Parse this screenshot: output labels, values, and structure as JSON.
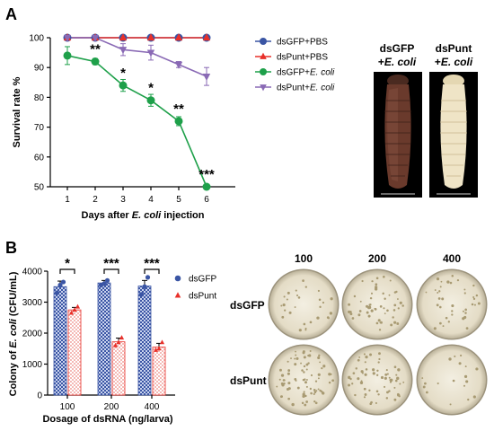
{
  "panels": {
    "a": "A",
    "b": "B"
  },
  "chart_data": [
    {
      "type": "line",
      "x": [
        1,
        2,
        3,
        4,
        5,
        6
      ],
      "xlabel_prefix": "Days after ",
      "xlabel_italic": "E. coli",
      "xlabel_suffix": " injection",
      "ylabel": "Survival rate %",
      "ylim": [
        50,
        100
      ],
      "yticks": [
        50,
        60,
        70,
        80,
        90,
        100
      ],
      "series": [
        {
          "name": "dsGFP+PBS",
          "color": "#3a55a4",
          "marker": "circle",
          "values": [
            100,
            100,
            100,
            100,
            100,
            100
          ],
          "errors": [
            0,
            0,
            0,
            0,
            0,
            0
          ]
        },
        {
          "name": "dsPunt+PBS",
          "color": "#e8302a",
          "marker": "triangle-up",
          "values": [
            100,
            100,
            100,
            100,
            100,
            100
          ],
          "errors": [
            0,
            0,
            0,
            0,
            0,
            0
          ]
        },
        {
          "name": "dsGFP+E. coli",
          "color": "#1ea04a",
          "marker": "circle",
          "values": [
            94,
            92,
            84,
            79,
            72,
            50
          ],
          "errors": [
            3,
            1,
            2,
            2,
            1.5,
            0
          ]
        },
        {
          "name": "dsPunt+E. coli",
          "color": "#8a6ab5",
          "marker": "triangle-down",
          "values": [
            100,
            100,
            96,
            95,
            91,
            87
          ],
          "errors": [
            0,
            0,
            2,
            2.5,
            1,
            3
          ]
        }
      ],
      "significance": [
        {
          "x": 2,
          "label": "**"
        },
        {
          "x": 3,
          "label": "*"
        },
        {
          "x": 4,
          "label": "*"
        },
        {
          "x": 5,
          "label": "**"
        },
        {
          "x": 6,
          "label": "***"
        }
      ]
    },
    {
      "type": "bar",
      "categories": [
        "100",
        "200",
        "400"
      ],
      "xlabel": "Dosage of dsRNA (ng/larva)",
      "ylabel_prefix": "Colony of ",
      "ylabel_italic": "E. coli",
      "ylabel_suffix": " (CFU/mL)",
      "ylim": [
        0,
        4000
      ],
      "yticks": [
        0,
        1000,
        2000,
        3000,
        4000
      ],
      "series": [
        {
          "name": "dsGFP",
          "color": "#3a55a4",
          "marker": "circle",
          "values": [
            3500,
            3620,
            3520
          ],
          "errors": [
            180,
            80,
            180
          ],
          "points": [
            [
              3300,
              3550,
              3650
            ],
            [
              3550,
              3600,
              3700
            ],
            [
              3250,
              3500,
              3800
            ]
          ]
        },
        {
          "name": "dsPunt",
          "color": "#e8302a",
          "marker": "triangle-up",
          "values": [
            2750,
            1720,
            1550
          ],
          "errors": [
            80,
            120,
            120
          ],
          "points": [
            [
              2650,
              2750,
              2850
            ],
            [
              1600,
              1700,
              1850
            ],
            [
              1450,
              1500,
              1700
            ]
          ]
        }
      ],
      "significance": [
        {
          "category": "100",
          "label": "*"
        },
        {
          "category": "200",
          "label": "***"
        },
        {
          "category": "400",
          "label": "***"
        }
      ]
    }
  ],
  "photos": {
    "larvae": [
      {
        "line1": "dsGFP",
        "line2_prefix": "+",
        "line2_italic": "E. coli"
      },
      {
        "line1": "dsPunt",
        "line2_prefix": "+",
        "line2_italic": "E. coli"
      }
    ],
    "plates": {
      "columns": [
        "100",
        "200",
        "400"
      ],
      "rows": [
        "dsGFP",
        "dsPunt"
      ]
    }
  },
  "colors": {
    "larva_dark": "#6a3a2c",
    "larva_light": "#efe4c6",
    "plate_bg": "#ece7d8"
  }
}
